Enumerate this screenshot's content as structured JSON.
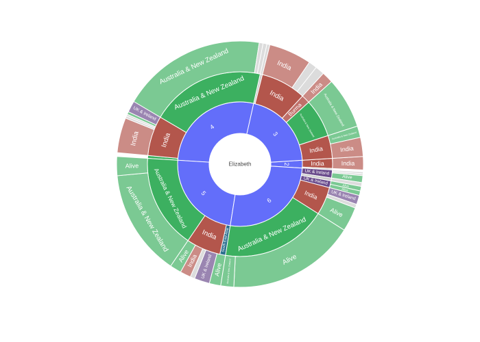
{
  "chart_data": {
    "type": "sunburst",
    "root": {
      "label": "Elizabeth"
    },
    "colors": {
      "root": "#ffffff",
      "generation": "#636efa",
      "Australia & New Zealand": "#3cb060",
      "India": "#b3564c",
      "Burma": "#c0706a",
      "South East Asia": "#2c6f8f",
      "UK & Ireland": "#6a4b8c",
      "Alive": "#3cb060"
    },
    "children": [
      {
        "label": "2",
        "start": 0.24,
        "end": 0.26,
        "children": [
          {
            "label": "India",
            "start": 0.24,
            "end": 0.2575,
            "children": [
              {
                "label": "India",
                "start": 0.24,
                "end": 0.2575
              }
            ]
          },
          {
            "label": "",
            "start": 0.2575,
            "end": 0.26,
            "children": []
          }
        ]
      },
      {
        "label": "3",
        "start": 0.035,
        "end": 0.24,
        "children": [
          {
            "label": "",
            "start": 0.035,
            "end": 0.039,
            "children": [
              {
                "label": "",
                "start": 0.035,
                "end": 0.039
              }
            ]
          },
          {
            "label": "India",
            "start": 0.039,
            "end": 0.118,
            "children": [
              {
                "label": "India",
                "start": 0.039,
                "end": 0.095
              },
              {
                "label": "",
                "start": 0.095,
                "end": 0.106
              },
              {
                "label": "",
                "start": 0.106,
                "end": 0.118
              }
            ]
          },
          {
            "label": "Burma",
            "start": 0.118,
            "end": 0.133,
            "children": [
              {
                "label": "India",
                "start": 0.118,
                "end": 0.133
              }
            ]
          },
          {
            "label": "Australia & New Zealand",
            "start": 0.133,
            "end": 0.2,
            "children": [
              {
                "label": "Australia & New Zealand",
                "start": 0.133,
                "end": 0.2
              }
            ]
          },
          {
            "label": "India",
            "start": 0.2,
            "end": 0.24,
            "children": [
              {
                "label": "Australia & New Zealand",
                "start": 0.2,
                "end": 0.215
              },
              {
                "label": "India",
                "start": 0.215,
                "end": 0.24
              }
            ]
          }
        ]
      },
      {
        "label": "4",
        "start": 0.76,
        "end": 1.035,
        "children": [
          {
            "label": "Australia & New Zealand",
            "start": 0.76,
            "end": 0.765,
            "children": []
          },
          {
            "label": "India",
            "start": 0.765,
            "end": 0.835,
            "children": [
              {
                "label": "India",
                "start": 0.765,
                "end": 0.811
              },
              {
                "label": "",
                "start": 0.811,
                "end": 0.814
              },
              {
                "label": "",
                "start": 0.814,
                "end": 0.8165
              },
              {
                "label": "Australia & New Zealand",
                "start": 0.8165,
                "end": 0.82
              },
              {
                "label": "UK & Ireland",
                "start": 0.82,
                "end": 0.835
              }
            ]
          },
          {
            "label": "Australia & New Zealand",
            "start": 0.835,
            "end": 1.035,
            "children": [
              {
                "label": "Australia & New Zealand",
                "start": 0.835,
                "end": 1.025
              },
              {
                "label": "",
                "start": 1.025,
                "end": 1.03
              },
              {
                "label": "",
                "start": 1.03,
                "end": 1.035
              }
            ]
          }
        ]
      },
      {
        "label": "5",
        "start": 0.525,
        "end": 0.76,
        "children": [
          {
            "label": "South East Asia",
            "start": 0.525,
            "end": 0.535,
            "children": [
              {
                "label": "Alive",
                "start": 0.525,
                "end": 0.54
              }
            ]
          },
          {
            "label": "India",
            "start": 0.535,
            "end": 0.595,
            "children": [
              {
                "label": "UK & Ireland",
                "start": 0.54,
                "end": 0.56
              },
              {
                "label": "",
                "start": 0.56,
                "end": 0.566
              },
              {
                "label": "India",
                "start": 0.566,
                "end": 0.58
              },
              {
                "label": "Alive",
                "start": 0.58,
                "end": 0.595
              }
            ]
          },
          {
            "label": "Australia & New Zealand",
            "start": 0.595,
            "end": 0.76,
            "children": [
              {
                "label": "Australia & New Zealand",
                "start": 0.595,
                "end": 0.735
              },
              {
                "label": "Alive",
                "start": 0.735,
                "end": 0.76
              }
            ]
          }
        ]
      },
      {
        "label": "6",
        "start": 0.26,
        "end": 0.525,
        "children": [
          {
            "label": "UK & Ireland",
            "start": 0.26,
            "end": 0.274,
            "children": [
              {
                "label": "",
                "start": 0.26,
                "end": 0.2625
              },
              {
                "label": "",
                "start": 0.2625,
                "end": 0.265
              },
              {
                "label": "Alive",
                "start": 0.265,
                "end": 0.274
              }
            ]
          },
          {
            "label": "",
            "start": 0.274,
            "end": 0.279,
            "children": [
              {
                "label": "",
                "start": 0.274,
                "end": 0.279
              }
            ]
          },
          {
            "label": "UK & Ireland",
            "start": 0.279,
            "end": 0.291,
            "children": [
              {
                "label": "Alive",
                "start": 0.279,
                "end": 0.285
              },
              {
                "label": "Alive",
                "start": 0.285,
                "end": 0.291
              }
            ]
          },
          {
            "label": "India",
            "start": 0.291,
            "end": 0.34,
            "children": [
              {
                "label": "UK & Ireland",
                "start": 0.291,
                "end": 0.303
              },
              {
                "label": "",
                "start": 0.303,
                "end": 0.308
              },
              {
                "label": "Alive",
                "start": 0.308,
                "end": 0.34
              }
            ]
          },
          {
            "label": "Australia & New Zealand",
            "start": 0.34,
            "end": 0.525,
            "children": [
              {
                "label": "Alive",
                "start": 0.34,
                "end": 0.508
              },
              {
                "label": "Australia & New Zealand",
                "start": 0.508,
                "end": 0.525
              }
            ]
          }
        ]
      }
    ]
  }
}
